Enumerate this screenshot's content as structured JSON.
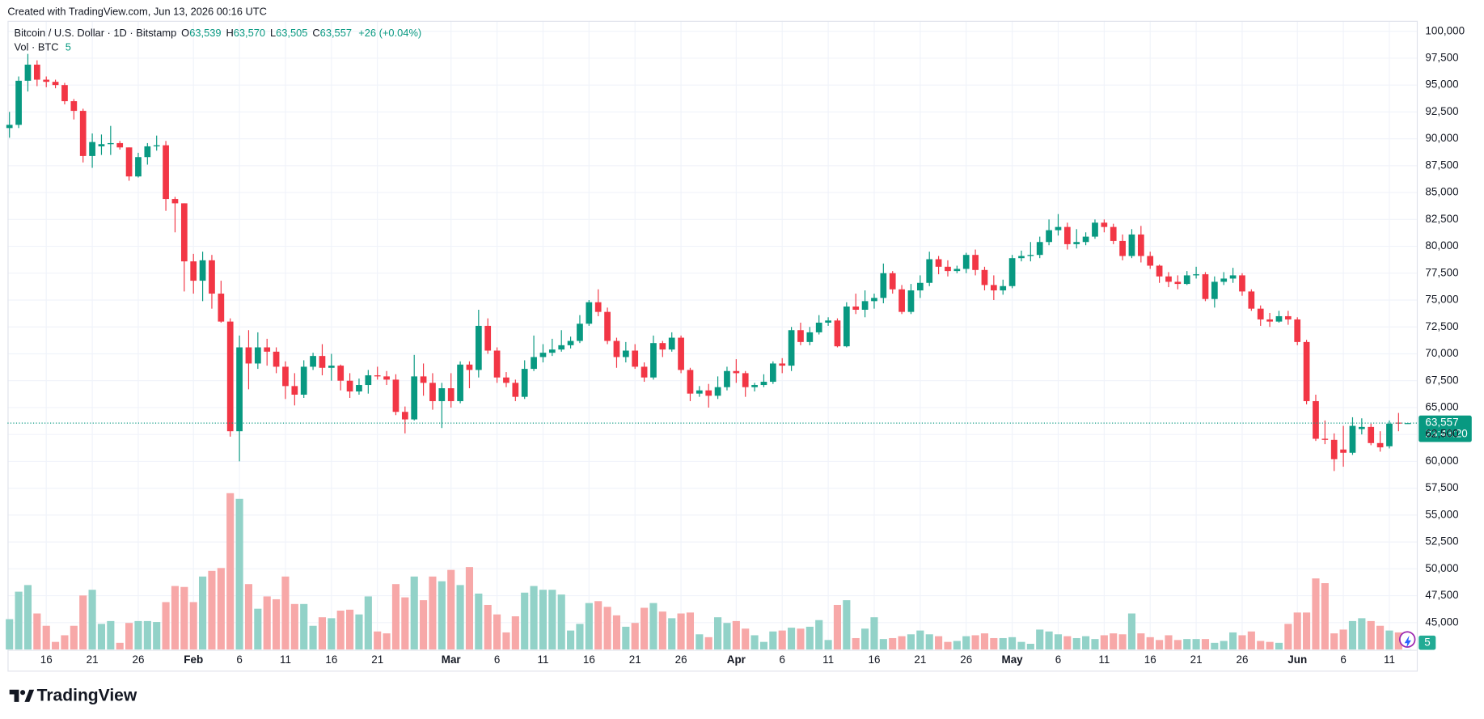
{
  "header": {
    "created": "Created with TradingView.com, Jun 13, 2026 00:16 UTC"
  },
  "branding": {
    "logo": "TradingView"
  },
  "chart_data": {
    "type": "candlestick",
    "legend": {
      "symbol": "Bitcoin / U.S. Dollar · 1D · Bitstamp",
      "open_key": "O",
      "open": "63,539",
      "high_key": "H",
      "high": "63,570",
      "low_key": "L",
      "low": "63,505",
      "close_key": "C",
      "close": "63,557",
      "change": "+26 (+0.04%)",
      "volume_name": "Vol · BTC"
    },
    "categories": [
      null,
      null,
      null,
      null,
      "16",
      null,
      null,
      null,
      null,
      "21",
      null,
      null,
      null,
      null,
      "26",
      null,
      null,
      null,
      null,
      null,
      "Feb",
      null,
      null,
      null,
      null,
      "6",
      null,
      null,
      null,
      null,
      "11",
      null,
      null,
      null,
      null,
      "16",
      null,
      null,
      null,
      null,
      "21",
      null,
      null,
      null,
      null,
      null,
      null,
      null,
      "Mar",
      null,
      null,
      null,
      null,
      "6",
      null,
      null,
      null,
      null,
      "11",
      null,
      null,
      null,
      null,
      "16",
      null,
      null,
      null,
      null,
      "21",
      null,
      null,
      null,
      null,
      "26",
      null,
      null,
      null,
      null,
      null,
      "Apr",
      null,
      null,
      null,
      null,
      "6",
      null,
      null,
      null,
      null,
      "11",
      null,
      null,
      null,
      null,
      "16",
      null,
      null,
      null,
      null,
      "21",
      null,
      null,
      null,
      null,
      "26",
      null,
      null,
      null,
      null,
      "May",
      null,
      null,
      null,
      null,
      "6",
      null,
      null,
      null,
      null,
      "11",
      null,
      null,
      null,
      null,
      "16",
      null,
      null,
      null,
      null,
      "21",
      null,
      null,
      null,
      null,
      "26",
      null,
      null,
      null,
      null,
      null,
      "Jun",
      null,
      null,
      null,
      null,
      "6",
      null,
      null,
      null,
      null,
      "11",
      null,
      null
    ],
    "open": [
      91000,
      91300,
      95400,
      96900,
      95500,
      95300,
      95000,
      93500,
      92600,
      88400,
      89300,
      89500,
      89600,
      89200,
      86500,
      88300,
      89300,
      89400,
      84400,
      84000,
      78600,
      76800,
      78700,
      75600,
      73000,
      62800,
      70600,
      69100,
      70600,
      70200,
      68800,
      67000,
      66200,
      68800,
      69800,
      68700,
      68900,
      67500,
      66500,
      67100,
      68000,
      67900,
      67600,
      64600,
      63900,
      67900,
      67300,
      65600,
      66800,
      65600,
      69000,
      68500,
      72600,
      70300,
      67800,
      67300,
      66000,
      68600,
      69700,
      70100,
      70400,
      70800,
      71200,
      72800,
      74800,
      73900,
      71200,
      69700,
      70300,
      68800,
      67800,
      71000,
      70400,
      71500,
      68500,
      66300,
      66600,
      66100,
      66900,
      68400,
      68200,
      66900,
      67100,
      67400,
      69100,
      68900,
      72200,
      71100,
      72000,
      72900,
      73100,
      70700,
      74400,
      74100,
      74900,
      75200,
      77500,
      76000,
      73900,
      75900,
      76600,
      78800,
      78100,
      77700,
      77900,
      79200,
      77800,
      76400,
      75900,
      76300,
      78900,
      79100,
      79200,
      80400,
      81500,
      81800,
      80200,
      80400,
      80900,
      82200,
      81800,
      80500,
      79100,
      81100,
      79100,
      78200,
      77200,
      76700,
      76500,
      77300,
      77400,
      75100,
      76700,
      77000,
      77300,
      75800,
      74200,
      73200,
      73000,
      73500,
      73200,
      71100,
      65600,
      62100,
      62000,
      61100,
      60800,
      63000,
      63200,
      61700,
      61400,
      63600,
      63539
    ],
    "high": [
      92500,
      95800,
      97900,
      97300,
      95800,
      95500,
      95200,
      93700,
      92800,
      90500,
      90400,
      91200,
      89800,
      89200,
      88700,
      89600,
      90300,
      89800,
      84600,
      84000,
      79300,
      79500,
      79200,
      76800,
      73300,
      71700,
      72200,
      72000,
      71400,
      70600,
      69300,
      68200,
      69400,
      70100,
      70900,
      70000,
      69000,
      68200,
      67700,
      68500,
      68800,
      68400,
      68100,
      65100,
      69900,
      69100,
      68200,
      67300,
      68200,
      69300,
      69300,
      74100,
      73300,
      70600,
      68300,
      67600,
      69400,
      71700,
      70900,
      71400,
      72200,
      71600,
      73600,
      75000,
      76000,
      74300,
      71500,
      71100,
      70900,
      69200,
      71700,
      71200,
      72000,
      71700,
      68700,
      67000,
      67200,
      67900,
      68800,
      69500,
      68400,
      67300,
      68100,
      69300,
      69600,
      72500,
      72900,
      72500,
      73600,
      73400,
      73300,
      74800,
      75600,
      75900,
      75600,
      78400,
      77700,
      76400,
      76500,
      77300,
      79500,
      79100,
      78700,
      78200,
      79400,
      79700,
      78100,
      77300,
      76900,
      79200,
      79600,
      80400,
      80900,
      82500,
      83000,
      82200,
      81600,
      81300,
      82500,
      82500,
      82100,
      81100,
      81600,
      81900,
      79500,
      78300,
      77600,
      77300,
      77700,
      78100,
      77600,
      77200,
      77600,
      78000,
      77500,
      76000,
      74500,
      73800,
      74000,
      74000,
      73400,
      71300,
      66200,
      63800,
      62600,
      63300,
      64100,
      64000,
      63500,
      62800,
      63800,
      64500,
      63570
    ],
    "low": [
      90100,
      91000,
      94400,
      94900,
      94800,
      94700,
      93200,
      91800,
      87800,
      87300,
      88500,
      88500,
      89000,
      86100,
      86400,
      87600,
      88900,
      83300,
      81300,
      75800,
      75600,
      74900,
      74200,
      72900,
      62300,
      60000,
      66700,
      68600,
      68900,
      68200,
      65800,
      65200,
      65900,
      68500,
      68000,
      67500,
      66600,
      65900,
      66200,
      66300,
      67600,
      67100,
      64300,
      62600,
      63800,
      66100,
      64800,
      63100,
      65000,
      65400,
      66800,
      67800,
      70000,
      67300,
      66900,
      65600,
      65800,
      68400,
      69200,
      69800,
      70200,
      70500,
      71000,
      72600,
      73500,
      70900,
      68700,
      69200,
      68600,
      67400,
      67600,
      69700,
      70200,
      68200,
      65600,
      66000,
      65000,
      65800,
      66600,
      67300,
      66000,
      66500,
      66900,
      67200,
      68200,
      68400,
      70800,
      70800,
      71800,
      72600,
      70600,
      70600,
      73700,
      73400,
      74200,
      74700,
      75600,
      73700,
      73700,
      75200,
      76300,
      77400,
      77200,
      77500,
      77500,
      77300,
      75900,
      75000,
      75500,
      76100,
      78600,
      78600,
      78900,
      80100,
      81000,
      79700,
      79800,
      80100,
      80700,
      81300,
      80200,
      78700,
      78900,
      78500,
      77900,
      76600,
      76200,
      76000,
      76400,
      77000,
      74900,
      74300,
      76400,
      76600,
      75400,
      74000,
      72600,
      72500,
      72900,
      72700,
      70800,
      65300,
      61900,
      61600,
      59100,
      59500,
      60600,
      62500,
      61500,
      60900,
      61200,
      62800,
      63505
    ],
    "close": [
      91300,
      95400,
      96900,
      95500,
      95300,
      95000,
      93500,
      92600,
      88400,
      89700,
      89500,
      89600,
      89200,
      86500,
      88300,
      89300,
      89400,
      84400,
      84000,
      78600,
      76800,
      78700,
      75600,
      73000,
      62800,
      70600,
      69100,
      70600,
      70200,
      68800,
      67000,
      66200,
      68800,
      69800,
      68700,
      68900,
      67500,
      66500,
      67100,
      68000,
      67900,
      67600,
      64600,
      63900,
      67900,
      67300,
      65600,
      66800,
      65600,
      69000,
      68500,
      72600,
      70300,
      67800,
      67300,
      66000,
      68600,
      69700,
      70100,
      70400,
      70800,
      71200,
      72800,
      74800,
      73900,
      71200,
      69700,
      70300,
      68800,
      67800,
      71000,
      70400,
      71500,
      68500,
      66300,
      66600,
      66100,
      66900,
      68400,
      68200,
      66900,
      67100,
      67400,
      69100,
      68900,
      72200,
      71100,
      72000,
      72900,
      73100,
      70700,
      74400,
      74100,
      74900,
      75200,
      77500,
      76000,
      73900,
      75900,
      76600,
      78800,
      78100,
      77700,
      77900,
      79200,
      77800,
      76400,
      75900,
      76300,
      78900,
      79100,
      79200,
      80400,
      81500,
      81800,
      80200,
      80400,
      80900,
      82200,
      81800,
      80500,
      79100,
      81100,
      79100,
      78200,
      77200,
      76700,
      76500,
      77300,
      77400,
      75100,
      76700,
      77000,
      77300,
      75800,
      74200,
      73200,
      73000,
      73500,
      73200,
      71100,
      65600,
      62100,
      62000,
      60200,
      60800,
      63300,
      63200,
      61700,
      61300,
      63500,
      63550,
      63557
    ],
    "volume": [
      960,
      1830,
      2040,
      1140,
      750,
      240,
      450,
      750,
      1710,
      1890,
      810,
      900,
      210,
      840,
      900,
      900,
      870,
      1500,
      2010,
      1980,
      1500,
      2310,
      2490,
      2580,
      4950,
      4770,
      2070,
      1290,
      1680,
      1590,
      2310,
      1440,
      1440,
      750,
      1020,
      990,
      1230,
      1260,
      1110,
      1680,
      570,
      510,
      2070,
      1650,
      2310,
      1560,
      2310,
      2160,
      2520,
      2040,
      2610,
      1770,
      1410,
      1110,
      540,
      1050,
      1800,
      2010,
      1890,
      1890,
      1740,
      600,
      810,
      1470,
      1530,
      1350,
      1080,
      720,
      840,
      1320,
      1470,
      1200,
      990,
      1140,
      1170,
      480,
      390,
      1020,
      840,
      900,
      660,
      450,
      240,
      570,
      600,
      690,
      660,
      720,
      930,
      300,
      1410,
      1560,
      360,
      660,
      1020,
      330,
      360,
      420,
      480,
      600,
      480,
      420,
      240,
      270,
      420,
      450,
      510,
      360,
      360,
      390,
      240,
      180,
      630,
      570,
      480,
      420,
      360,
      420,
      330,
      450,
      510,
      480,
      1140,
      510,
      390,
      300,
      450,
      300,
      330,
      330,
      330,
      210,
      270,
      540,
      450,
      570,
      270,
      240,
      210,
      810,
      1170,
      1170,
      2250,
      2100,
      510,
      630,
      900,
      990,
      900,
      750,
      600,
      540,
      5
    ],
    "up_color": "#089981",
    "down_color": "#f23645",
    "volume_up_color": "#92d2c8",
    "volume_down_color": "#f7a8a8",
    "ylim": [
      42500,
      101000
    ],
    "yticks": [
      {
        "value": 45000,
        "label": "45,000"
      },
      {
        "value": 47500,
        "label": "47,500"
      },
      {
        "value": 50000,
        "label": "50,000"
      },
      {
        "value": 52500,
        "label": "52,500"
      },
      {
        "value": 55000,
        "label": "55,000"
      },
      {
        "value": 57500,
        "label": "57,500"
      },
      {
        "value": 60000,
        "label": "60,000"
      },
      {
        "value": 62500,
        "label": "62,500"
      },
      {
        "value": 65000,
        "label": "65,000"
      },
      {
        "value": 67500,
        "label": "67,500"
      },
      {
        "value": 70000,
        "label": "70,000"
      },
      {
        "value": 72500,
        "label": "72,500"
      },
      {
        "value": 75000,
        "label": "75,000"
      },
      {
        "value": 77500,
        "label": "77,500"
      },
      {
        "value": 80000,
        "label": "80,000"
      },
      {
        "value": 82500,
        "label": "82,500"
      },
      {
        "value": 85000,
        "label": "85,000"
      },
      {
        "value": 87500,
        "label": "87,500"
      },
      {
        "value": 90000,
        "label": "90,000"
      },
      {
        "value": 92500,
        "label": "92,500"
      },
      {
        "value": 95000,
        "label": "95,000"
      },
      {
        "value": 97500,
        "label": "97,500"
      },
      {
        "value": 100000,
        "label": "100,000"
      }
    ],
    "grid": true,
    "last_price": {
      "value": 63557,
      "label": "63,557"
    },
    "countdown": "23:43:20"
  }
}
